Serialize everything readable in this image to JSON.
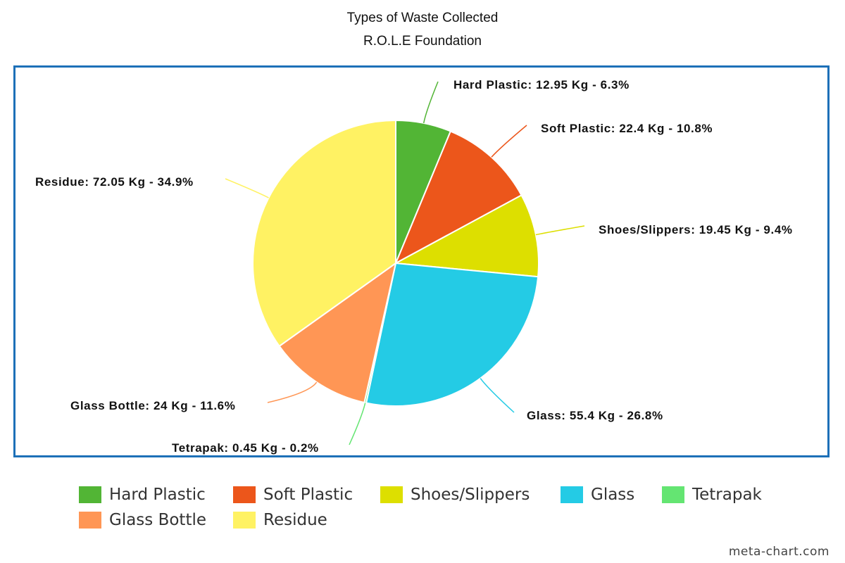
{
  "chart_data": {
    "type": "pie",
    "title": "Types of Waste Collected",
    "subtitle": "R.O.L.E Foundation",
    "slices": [
      {
        "name": "Hard Plastic",
        "value": 12.95,
        "percent": 6.3,
        "label": "Hard Plastic: 12.95 Kg - 6.3%",
        "color": "#52b535"
      },
      {
        "name": "Soft Plastic",
        "value": 22.4,
        "percent": 10.8,
        "label": "Soft Plastic: 22.4 Kg - 10.8%",
        "color": "#ec561b"
      },
      {
        "name": "Shoes/Slippers",
        "value": 19.45,
        "percent": 9.4,
        "label": "Shoes/Slippers: 19.45 Kg - 9.4%",
        "color": "#dddf00"
      },
      {
        "name": "Glass",
        "value": 55.4,
        "percent": 26.8,
        "label": "Glass: 55.4 Kg - 26.8%",
        "color": "#24cbe5"
      },
      {
        "name": "Tetrapak",
        "value": 0.45,
        "percent": 0.2,
        "label": "Tetrapak: 0.45 Kg - 0.2%",
        "color": "#64e572"
      },
      {
        "name": "Glass Bottle",
        "value": 24,
        "percent": 11.6,
        "label": "Glass Bottle: 24 Kg - 11.6%",
        "color": "#ff9655"
      },
      {
        "name": "Residue",
        "value": 72.05,
        "percent": 34.9,
        "label": "Residue: 72.05 Kg - 34.9%",
        "color": "#fff263"
      }
    ],
    "legend_placement": "bottom"
  },
  "credit": "meta-chart.com"
}
